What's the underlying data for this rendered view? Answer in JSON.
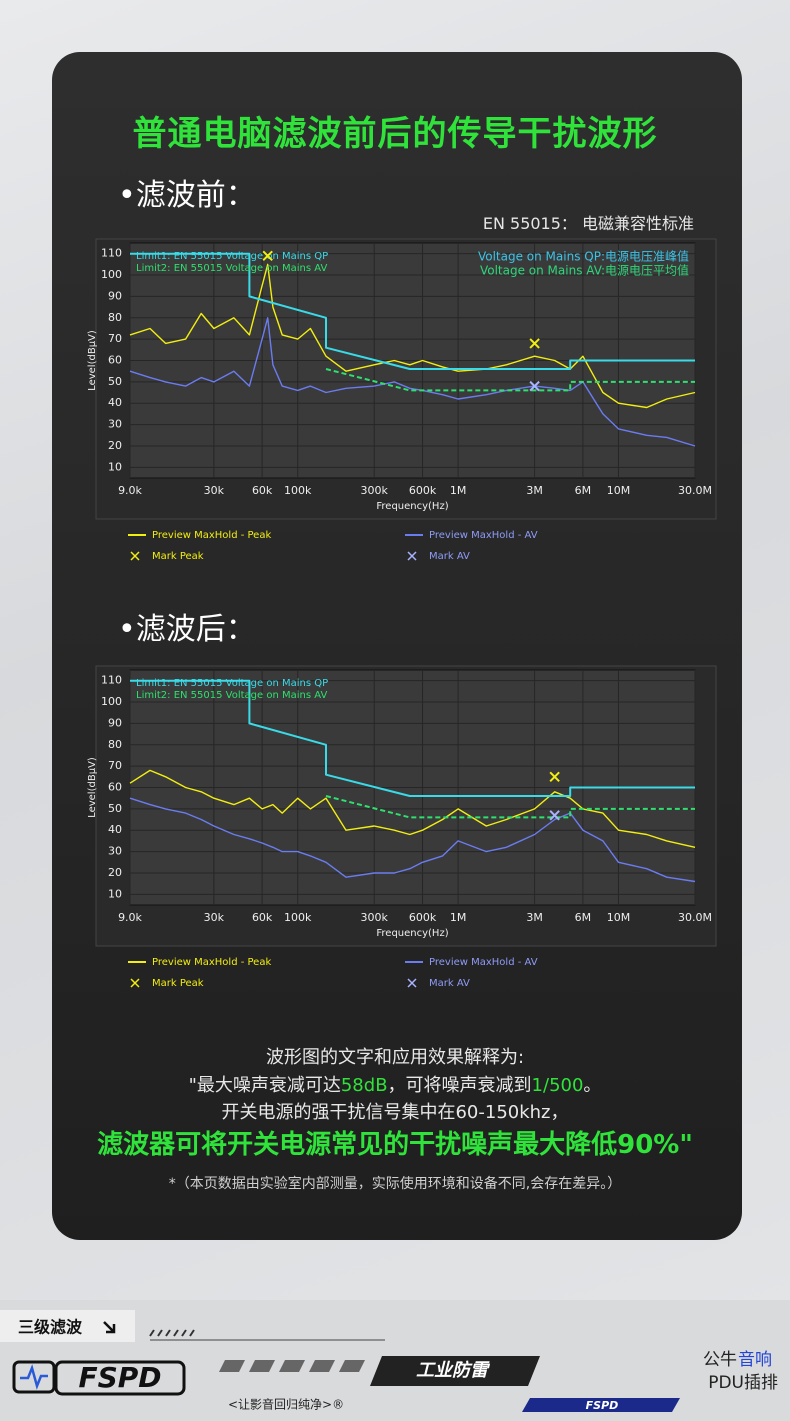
{
  "title": "普通电脑滤波前后的传导干扰波形",
  "standard_note": "EN 55015： 电磁兼容性标准",
  "chart_data": [
    {
      "type": "line",
      "section_label": "•滤波前：",
      "y_label": "Level(dBμV)",
      "x_label": "Frequency(Hz)",
      "log_x": true,
      "grid": true,
      "xlim": [
        9000,
        30000000
      ],
      "ylim": [
        5,
        115
      ],
      "yticks": [
        10,
        20,
        30,
        40,
        50,
        60,
        70,
        80,
        90,
        100,
        110
      ],
      "xticks": [
        {
          "value": 9000,
          "label": "9.0k"
        },
        {
          "value": 30000,
          "label": "30k"
        },
        {
          "value": 60000,
          "label": "60k"
        },
        {
          "value": 100000,
          "label": "100k"
        },
        {
          "value": 300000,
          "label": "300k"
        },
        {
          "value": 600000,
          "label": "600k"
        },
        {
          "value": 1000000,
          "label": "1M"
        },
        {
          "value": 3000000,
          "label": "3M"
        },
        {
          "value": 6000000,
          "label": "6M"
        },
        {
          "value": 10000000,
          "label": "10M"
        },
        {
          "value": 30000000,
          "label": "30.0M"
        }
      ],
      "annotations": [
        {
          "text": "Voltage on Mains QP:电源电压准峰值",
          "color": "#3cc3e6"
        },
        {
          "text": "Voltage on Mains AV:电源电压平均值",
          "color": "#2ed67a"
        }
      ],
      "limits": [
        {
          "name": "Limit1: EN 55015 Voltage on Mains QP",
          "color": "#39dbe8",
          "dashed": false,
          "x": [
            9000,
            50000,
            50000,
            150000,
            150000,
            500000,
            5000000,
            5000000,
            30000000
          ],
          "values": [
            110,
            110,
            90,
            80,
            66,
            56,
            56,
            60,
            60
          ]
        },
        {
          "name": "Limit2: EN 55015 Voltage on Mains AV",
          "color": "#2ee06f",
          "dashed": true,
          "x": [
            150000,
            500000,
            5000000,
            5000000,
            30000000
          ],
          "values": [
            56,
            46,
            46,
            50,
            50
          ]
        }
      ],
      "x": [
        9000,
        12000,
        15000,
        20000,
        25000,
        30000,
        40000,
        50000,
        60000,
        65000,
        70000,
        80000,
        100000,
        120000,
        150000,
        200000,
        300000,
        400000,
        500000,
        600000,
        800000,
        1000000,
        1500000,
        2000000,
        3000000,
        4000000,
        5000000,
        6000000,
        8000000,
        10000000,
        15000000,
        20000000,
        30000000
      ],
      "series": [
        {
          "name": "Preview MaxHold - Peak",
          "color": "#f2ee10",
          "values": [
            72,
            75,
            68,
            70,
            82,
            75,
            80,
            72,
            95,
            105,
            85,
            72,
            70,
            75,
            62,
            55,
            58,
            60,
            58,
            60,
            57,
            55,
            56,
            58,
            62,
            60,
            56,
            62,
            45,
            40,
            38,
            42,
            45
          ]
        },
        {
          "name": "Preview MaxHold - AV",
          "color": "#6b7cf0",
          "values": [
            55,
            52,
            50,
            48,
            52,
            50,
            55,
            48,
            70,
            80,
            58,
            48,
            46,
            48,
            45,
            47,
            48,
            50,
            47,
            46,
            44,
            42,
            44,
            46,
            48,
            47,
            46,
            50,
            35,
            28,
            25,
            24,
            20
          ]
        },
        {
          "name": "Mark Peak",
          "color": "#f2ee10",
          "marker": "x",
          "x": [
            65000,
            3000000
          ],
          "values": [
            109,
            68
          ]
        },
        {
          "name": "Mark AV",
          "color": "#a8b4ff",
          "marker": "x",
          "x": [
            3000000
          ],
          "values": [
            48
          ]
        }
      ]
    },
    {
      "type": "line",
      "section_label": "•滤波后：",
      "y_label": "Level(dBμV)",
      "x_label": "Frequency(Hz)",
      "log_x": true,
      "grid": true,
      "xlim": [
        9000,
        30000000
      ],
      "ylim": [
        5,
        115
      ],
      "yticks": [
        10,
        20,
        30,
        40,
        50,
        60,
        70,
        80,
        90,
        100,
        110
      ],
      "xticks": [
        {
          "value": 9000,
          "label": "9.0k"
        },
        {
          "value": 30000,
          "label": "30k"
        },
        {
          "value": 60000,
          "label": "60k"
        },
        {
          "value": 100000,
          "label": "100k"
        },
        {
          "value": 300000,
          "label": "300k"
        },
        {
          "value": 600000,
          "label": "600k"
        },
        {
          "value": 1000000,
          "label": "1M"
        },
        {
          "value": 3000000,
          "label": "3M"
        },
        {
          "value": 6000000,
          "label": "6M"
        },
        {
          "value": 10000000,
          "label": "10M"
        },
        {
          "value": 30000000,
          "label": "30.0M"
        }
      ],
      "limits": [
        {
          "name": "Limit1: EN 55015 Voltage on Mains QP",
          "color": "#39dbe8",
          "dashed": false,
          "x": [
            9000,
            50000,
            50000,
            150000,
            150000,
            500000,
            5000000,
            5000000,
            30000000
          ],
          "values": [
            110,
            110,
            90,
            80,
            66,
            56,
            56,
            60,
            60
          ]
        },
        {
          "name": "Limit2: EN 55015 Voltage on Mains AV",
          "color": "#2ee06f",
          "dashed": true,
          "x": [
            150000,
            500000,
            5000000,
            5000000,
            30000000
          ],
          "values": [
            56,
            46,
            46,
            50,
            50
          ]
        }
      ],
      "x": [
        9000,
        12000,
        15000,
        20000,
        25000,
        30000,
        40000,
        50000,
        60000,
        70000,
        80000,
        100000,
        120000,
        150000,
        200000,
        300000,
        400000,
        500000,
        600000,
        800000,
        1000000,
        1500000,
        2000000,
        3000000,
        4000000,
        5000000,
        6000000,
        8000000,
        10000000,
        15000000,
        20000000,
        30000000
      ],
      "series": [
        {
          "name": "Preview MaxHold - Peak",
          "color": "#f2ee10",
          "values": [
            62,
            68,
            65,
            60,
            58,
            55,
            52,
            55,
            50,
            52,
            48,
            55,
            50,
            55,
            40,
            42,
            40,
            38,
            40,
            45,
            50,
            42,
            45,
            50,
            58,
            55,
            50,
            48,
            40,
            38,
            35,
            32
          ]
        },
        {
          "name": "Preview MaxHold - AV",
          "color": "#6b7cf0",
          "values": [
            55,
            52,
            50,
            48,
            45,
            42,
            38,
            36,
            34,
            32,
            30,
            30,
            28,
            25,
            18,
            20,
            20,
            22,
            25,
            28,
            35,
            30,
            32,
            38,
            45,
            48,
            40,
            35,
            25,
            22,
            18,
            16
          ]
        },
        {
          "name": "Mark Peak",
          "color": "#f2ee10",
          "marker": "x",
          "x": [
            4000000
          ],
          "values": [
            65
          ]
        },
        {
          "name": "Mark AV",
          "color": "#a8b4ff",
          "marker": "x",
          "x": [
            4000000
          ],
          "values": [
            47
          ]
        }
      ]
    }
  ],
  "explanation": {
    "intro": "波形图的文字和应用效果解释为:",
    "line2": [
      {
        "text": "\"最大噪声衰减可达",
        "highlight": false
      },
      {
        "text": "58dB",
        "highlight": true
      },
      {
        "text": "，可将噪声衰减到",
        "highlight": false
      },
      {
        "text": "1/500",
        "highlight": true
      },
      {
        "text": "。",
        "highlight": false
      }
    ],
    "line3": "开关电源的强干扰信号集中在60-150khz，",
    "conclusion": "滤波器可将开关电源常见的干扰噪声最大降低90%\"",
    "note": "*（本页数据由实验室内部测量，实际使用环境和设备不同,会存在差异。）"
  },
  "footer": {
    "tag": "三级滤波",
    "logo": "FSPD",
    "slogan": "<让影音回归纯净>®",
    "badge": "工业防雷",
    "brand_a": "公牛",
    "brand_b": "音响",
    "brand_c": "PDU插排",
    "mini_logo": "FSPD"
  }
}
